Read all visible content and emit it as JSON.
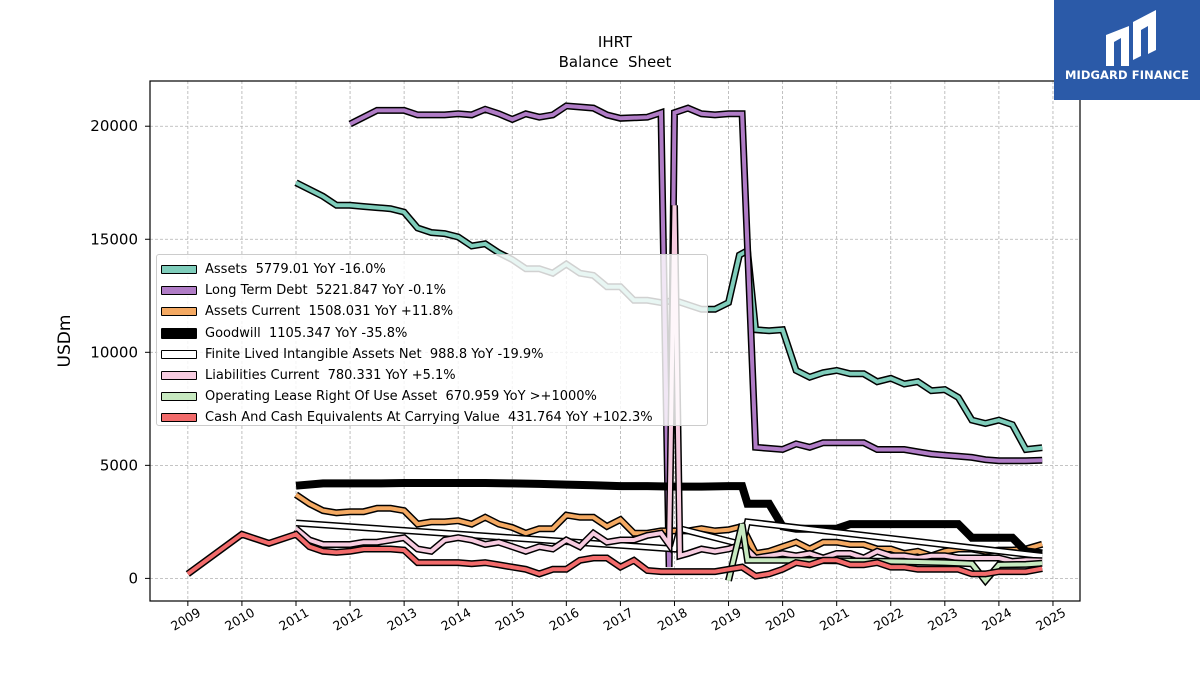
{
  "brand": {
    "name": "MIDGARD FINANCE",
    "color": "#2b5aa8"
  },
  "chart_data": {
    "type": "line",
    "title": "IHRT",
    "subtitle": "Balance  Sheet",
    "ylabel": "USDm",
    "xlabel": "",
    "xlim": [
      2008.3,
      2025.5
    ],
    "ylim": [
      -1000,
      22000
    ],
    "xticks": [
      "2009",
      "2010",
      "2011",
      "2012",
      "2013",
      "2014",
      "2015",
      "2016",
      "2017",
      "2018",
      "2019",
      "2020",
      "2021",
      "2022",
      "2023",
      "2024",
      "2025"
    ],
    "yticks": [
      "0",
      "5000",
      "10000",
      "15000",
      "20000"
    ],
    "grid": true,
    "legend_position": "center-left",
    "series": [
      {
        "name": "Assets  5779.01 YoY -16.0%",
        "color": "#7fcdbb",
        "x": [
          2011.0,
          2011.5,
          2011.75,
          2012.0,
          2012.25,
          2012.5,
          2012.75,
          2013.0,
          2013.25,
          2013.5,
          2013.75,
          2014.0,
          2014.25,
          2014.5,
          2014.75,
          2015.0,
          2015.25,
          2015.5,
          2015.75,
          2016.0,
          2016.25,
          2016.5,
          2016.75,
          2017.0,
          2017.25,
          2017.5,
          2017.75,
          2018.0,
          2018.25,
          2018.5,
          2018.75,
          2019.0,
          2019.2,
          2019.35,
          2019.5,
          2019.75,
          2020.0,
          2020.25,
          2020.5,
          2020.75,
          2021.0,
          2021.25,
          2021.5,
          2021.75,
          2022.0,
          2022.25,
          2022.5,
          2022.75,
          2023.0,
          2023.25,
          2023.5,
          2023.75,
          2024.0,
          2024.25,
          2024.5,
          2024.8
        ],
        "values": [
          17500,
          16900,
          16500,
          16500,
          16450,
          16400,
          16350,
          16200,
          15500,
          15300,
          15250,
          15100,
          14700,
          14800,
          14400,
          14100,
          13700,
          13700,
          13500,
          13900,
          13500,
          13400,
          12900,
          12900,
          12300,
          12300,
          12200,
          12300,
          12100,
          11900,
          11900,
          12200,
          14300,
          14500,
          11000,
          10950,
          11000,
          9200,
          8900,
          9100,
          9200,
          9050,
          9050,
          8700,
          8850,
          8600,
          8700,
          8300,
          8350,
          8000,
          7000,
          6850,
          7000,
          6800,
          5700,
          5779
        ]
      },
      {
        "name": "Long Term Debt  5221.847 YoY -0.1%",
        "color": "#b07cc6",
        "x": [
          2012.0,
          2012.5,
          2013.0,
          2013.25,
          2013.5,
          2013.75,
          2014.0,
          2014.25,
          2014.5,
          2014.75,
          2015.0,
          2015.25,
          2015.5,
          2015.75,
          2016.0,
          2016.25,
          2016.5,
          2016.75,
          2017.0,
          2017.5,
          2017.75,
          2017.9,
          2018.0,
          2018.25,
          2018.5,
          2018.75,
          2019.0,
          2019.25,
          2019.5,
          2019.75,
          2020.0,
          2020.25,
          2020.5,
          2020.75,
          2021.0,
          2021.25,
          2021.5,
          2021.75,
          2022.0,
          2022.25,
          2022.5,
          2022.75,
          2023.0,
          2023.25,
          2023.5,
          2023.75,
          2024.0,
          2024.25,
          2024.5,
          2024.8
        ],
        "values": [
          20100,
          20700,
          20700,
          20500,
          20500,
          20500,
          20550,
          20500,
          20750,
          20550,
          20300,
          20550,
          20400,
          20500,
          20900,
          20850,
          20800,
          20500,
          20350,
          20400,
          20600,
          500,
          20600,
          20800,
          20550,
          20500,
          20550,
          20550,
          5800,
          5750,
          5700,
          5950,
          5800,
          6000,
          6000,
          6000,
          6000,
          5700,
          5700,
          5700,
          5600,
          5500,
          5450,
          5400,
          5350,
          5250,
          5200,
          5200,
          5200,
          5222
        ]
      },
      {
        "name": "Assets Current  1508.031 YoY +11.8%",
        "color": "#f4a962",
        "x": [
          2011.0,
          2011.25,
          2011.5,
          2011.75,
          2012.0,
          2012.25,
          2012.5,
          2012.75,
          2013.0,
          2013.25,
          2013.5,
          2013.75,
          2014.0,
          2014.25,
          2014.5,
          2014.75,
          2015.0,
          2015.25,
          2015.5,
          2015.75,
          2016.0,
          2016.25,
          2016.5,
          2016.75,
          2017.0,
          2017.25,
          2017.5,
          2017.75,
          2018.0,
          2018.25,
          2018.5,
          2018.75,
          2019.0,
          2019.25,
          2019.5,
          2019.75,
          2020.0,
          2020.25,
          2020.5,
          2020.75,
          2021.0,
          2021.25,
          2021.5,
          2021.75,
          2022.0,
          2022.25,
          2022.5,
          2022.75,
          2023.0,
          2023.25,
          2023.5,
          2023.75,
          2024.0,
          2024.25,
          2024.5,
          2024.8
        ],
        "values": [
          3700,
          3300,
          3000,
          2900,
          2950,
          2950,
          3100,
          3100,
          3000,
          2400,
          2500,
          2500,
          2550,
          2400,
          2700,
          2400,
          2250,
          2000,
          2200,
          2200,
          2800,
          2700,
          2700,
          2300,
          2600,
          2000,
          2000,
          2100,
          2100,
          2100,
          2200,
          2100,
          2150,
          2300,
          1100,
          1200,
          1400,
          1600,
          1300,
          1600,
          1600,
          1500,
          1500,
          1300,
          1300,
          1100,
          1200,
          1000,
          1200,
          1300,
          1300,
          1200,
          1250,
          1250,
          1300,
          1508
        ]
      },
      {
        "name": "Goodwill  1105.347 YoY -35.8%",
        "color": "#000000",
        "x": [
          2011.0,
          2011.5,
          2012.0,
          2012.5,
          2013.0,
          2013.5,
          2014.0,
          2014.5,
          2015.0,
          2015.5,
          2016.0,
          2016.5,
          2017.0,
          2017.5,
          2018.0,
          2018.5,
          2019.0,
          2019.25,
          2019.35,
          2019.5,
          2019.75,
          2020.0,
          2020.25,
          2020.5,
          2020.75,
          2021.0,
          2021.25,
          2021.5,
          2021.75,
          2022.0,
          2022.25,
          2022.5,
          2022.75,
          2023.0,
          2023.25,
          2023.5,
          2023.75,
          2024.0,
          2024.25,
          2024.5,
          2024.8
        ],
        "values": [
          4100,
          4200,
          4200,
          4200,
          4220,
          4220,
          4220,
          4220,
          4200,
          4180,
          4150,
          4120,
          4080,
          4080,
          4060,
          4060,
          4080,
          4080,
          3300,
          3300,
          3300,
          2300,
          2200,
          2200,
          2200,
          2200,
          2400,
          2400,
          2400,
          2400,
          2400,
          2400,
          2400,
          2400,
          2400,
          1800,
          1800,
          1800,
          1800,
          1200,
          1105
        ]
      },
      {
        "name": "Finite Lived Intangible Assets Net  988.8 YoY -19.9%",
        "color": "#ffffff",
        "x": [
          2011.0,
          2018.0,
          2018.1,
          2019.25,
          2019.35,
          2024.8
        ],
        "values": [
          2450,
          1300,
          2200,
          1500,
          2500,
          989
        ]
      },
      {
        "name": "Liabilities Current  780.331 YoY +5.1%",
        "color": "#f7cce0",
        "x": [
          2011.0,
          2011.25,
          2011.5,
          2011.75,
          2012.0,
          2012.25,
          2012.5,
          2012.75,
          2013.0,
          2013.25,
          2013.5,
          2013.75,
          2014.0,
          2014.25,
          2014.5,
          2014.75,
          2015.0,
          2015.25,
          2015.5,
          2015.75,
          2016.0,
          2016.25,
          2016.5,
          2016.75,
          2017.0,
          2017.25,
          2017.5,
          2017.75,
          2017.9,
          2018.0,
          2018.1,
          2018.25,
          2018.5,
          2018.75,
          2019.0,
          2019.25,
          2019.5,
          2019.75,
          2020.0,
          2020.25,
          2020.5,
          2020.75,
          2021.0,
          2021.25,
          2021.5,
          2021.75,
          2022.0,
          2022.25,
          2022.5,
          2022.75,
          2023.0,
          2023.25,
          2023.5,
          2023.75,
          2024.0,
          2024.25,
          2024.5,
          2024.8
        ],
        "values": [
          2200,
          1700,
          1500,
          1500,
          1500,
          1600,
          1600,
          1700,
          1800,
          1300,
          1200,
          1700,
          1800,
          1700,
          1500,
          1600,
          1400,
          1200,
          1400,
          1300,
          1700,
          1400,
          2000,
          1600,
          1700,
          1700,
          1900,
          2000,
          1500,
          16500,
          1000,
          1100,
          1300,
          1200,
          1300,
          1500,
          900,
          1000,
          1100,
          1000,
          1100,
          900,
          1100,
          1100,
          900,
          1200,
          1000,
          1000,
          900,
          1000,
          1000,
          900,
          900,
          900,
          900,
          750,
          800,
          780
        ]
      },
      {
        "name": "Operating Lease Right Of Use Asset  670.959 YoY >+1000%",
        "color": "#c7e9c0",
        "x": [
          2019.0,
          2019.25,
          2019.35,
          2019.5,
          2020.0,
          2021.0,
          2022.0,
          2023.0,
          2023.5,
          2023.75,
          2024.0,
          2024.5,
          2024.8
        ],
        "values": [
          -100,
          2400,
          800,
          800,
          800,
          780,
          750,
          700,
          650,
          -100,
          600,
          620,
          671
        ]
      },
      {
        "name": "Cash And Cash Equivalents At Carrying Value  431.764 YoY +102.3%",
        "color": "#f26b6b",
        "x": [
          2009.0,
          2010.0,
          2010.5,
          2011.0,
          2011.25,
          2011.5,
          2011.75,
          2012.0,
          2012.25,
          2012.5,
          2012.75,
          2013.0,
          2013.25,
          2013.5,
          2013.75,
          2014.0,
          2014.25,
          2014.5,
          2014.75,
          2015.0,
          2015.25,
          2015.5,
          2015.75,
          2016.0,
          2016.25,
          2016.5,
          2016.75,
          2017.0,
          2017.25,
          2017.5,
          2017.75,
          2018.0,
          2018.25,
          2018.5,
          2018.75,
          2019.0,
          2019.25,
          2019.5,
          2019.75,
          2020.0,
          2020.25,
          2020.5,
          2020.75,
          2021.0,
          2021.25,
          2021.5,
          2021.75,
          2022.0,
          2022.25,
          2022.5,
          2022.75,
          2023.0,
          2023.25,
          2023.5,
          2023.75,
          2024.0,
          2024.25,
          2024.5,
          2024.8
        ],
        "values": [
          200,
          1950,
          1550,
          1950,
          1400,
          1200,
          1150,
          1200,
          1300,
          1300,
          1300,
          1250,
          700,
          700,
          700,
          700,
          650,
          700,
          600,
          500,
          400,
          200,
          400,
          400,
          800,
          900,
          900,
          500,
          800,
          350,
          300,
          300,
          300,
          300,
          300,
          400,
          500,
          100,
          200,
          400,
          700,
          600,
          800,
          800,
          600,
          600,
          700,
          500,
          500,
          400,
          400,
          400,
          400,
          200,
          200,
          300,
          300,
          300,
          432
        ]
      }
    ]
  }
}
